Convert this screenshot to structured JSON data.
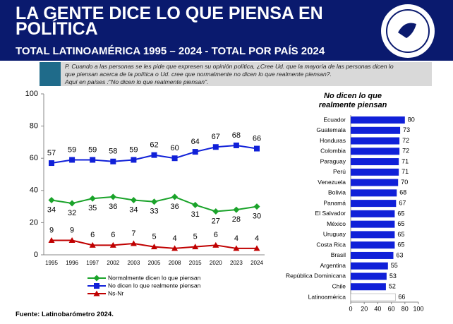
{
  "header": {
    "title": "LA GENTE DICE LO QUE PIENSA EN POLÍTICA",
    "subtitle": "TOTAL LATINOAMÉRICA  1995 – 2024 - TOTAL POR PAÍS 2024"
  },
  "question": [
    "P. Cuando a las personas se les pide que expresen su opinión política, ¿Cree Ud. que la mayoría de las personas dicen lo",
    "que piensan acerca de la política o Ud. cree que normalmente no dicen lo que realmente piensan?.",
    "Aquí en países :\"No dicen lo que realmente piensan\"."
  ],
  "source": "Fuente: Latinobarómetro 2024.",
  "chart_data": [
    {
      "type": "line",
      "categories": [
        "1995",
        "1996",
        "1997",
        "2002",
        "2003",
        "2005",
        "2008",
        "2015",
        "2020",
        "2023",
        "2024"
      ],
      "ylim": [
        0,
        100
      ],
      "yticks": [
        0,
        20,
        40,
        60,
        80,
        100
      ],
      "series": [
        {
          "name": "Normalmente dicen lo que piensan",
          "color": "#1aa32a",
          "marker": "diamond",
          "label_side": "below",
          "values": [
            34,
            32,
            35,
            36,
            34,
            33,
            36,
            31,
            27,
            28,
            30
          ]
        },
        {
          "name": "No dicen lo que realmente piensan",
          "color": "#1020d8",
          "marker": "square",
          "label_side": "above",
          "values": [
            57,
            59,
            59,
            58,
            59,
            62,
            60,
            64,
            67,
            68,
            66
          ]
        },
        {
          "name": "Ns-Nr",
          "color": "#c00000",
          "marker": "triangle",
          "label_side": "above",
          "values": [
            9,
            9,
            6,
            6,
            7,
            5,
            4,
            5,
            6,
            4,
            4
          ]
        }
      ]
    },
    {
      "type": "hbar",
      "title": "No dicen lo que realmente piensan",
      "categories": [
        "Ecuador",
        "Guatemala",
        "Honduras",
        "Colombia",
        "Paraguay",
        "Perú",
        "Venezuela",
        "Bolivia",
        "Panamá",
        "El Salvador",
        "México",
        "Uruguay",
        "Costa Rica",
        "Brasil",
        "Argentina",
        "República Dominicana",
        "Chile",
        "Latinoamérica"
      ],
      "values": [
        80,
        73,
        72,
        72,
        71,
        71,
        70,
        68,
        67,
        65,
        65,
        65,
        65,
        63,
        55,
        53,
        52,
        66
      ],
      "colors": [
        "#1020d8",
        "#1020d8",
        "#1020d8",
        "#1020d8",
        "#1020d8",
        "#1020d8",
        "#1020d8",
        "#1020d8",
        "#1020d8",
        "#1020d8",
        "#1020d8",
        "#1020d8",
        "#1020d8",
        "#1020d8",
        "#1020d8",
        "#1020d8",
        "#1020d8",
        "#ffffff"
      ],
      "xlim": [
        0,
        100
      ],
      "xticks": [
        0,
        20,
        40,
        60,
        80,
        100
      ]
    }
  ]
}
